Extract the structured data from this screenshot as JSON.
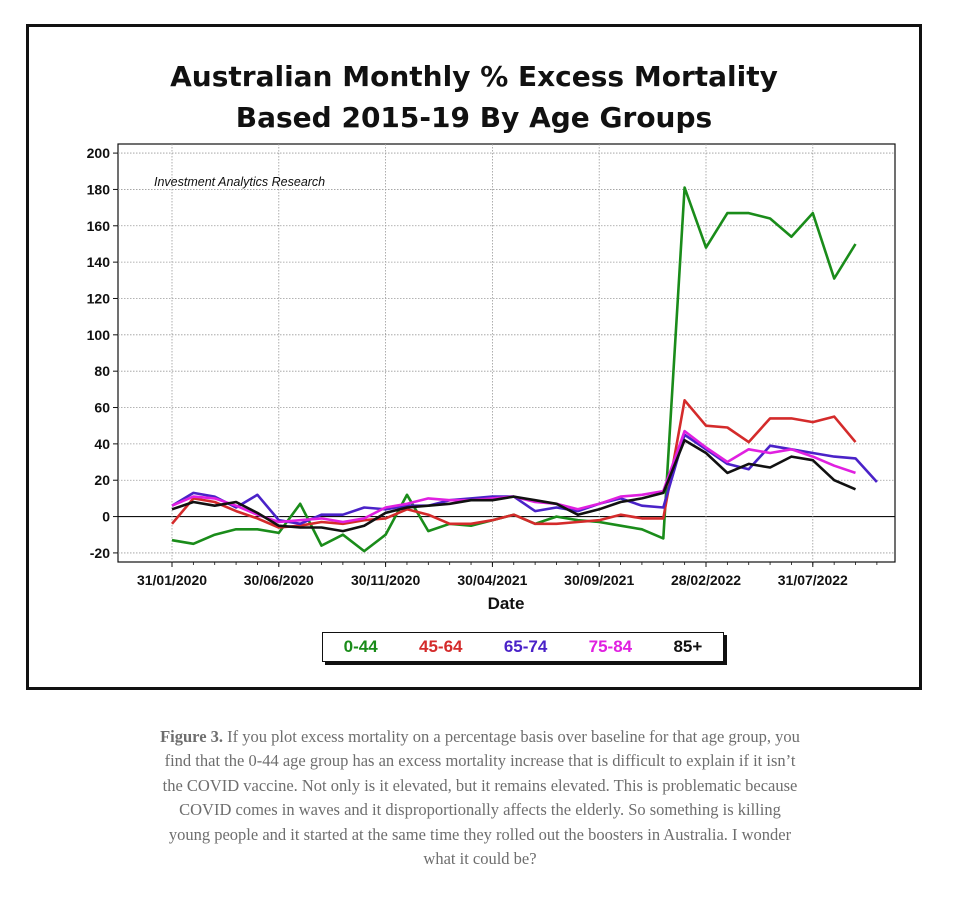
{
  "chart_data": {
    "type": "line",
    "title_lines": [
      "Australian Monthly % Excess Mortality",
      "Based 2015-19 By Age Groups"
    ],
    "watermark": "Investment Analytics Research",
    "xlabel": "Date",
    "ylabel": "",
    "ylim": [
      -25,
      205
    ],
    "yticks": [
      200,
      180,
      160,
      140,
      120,
      100,
      80,
      60,
      40,
      20,
      0,
      -20
    ],
    "xticks": [
      "31/01/2020",
      "30/06/2020",
      "30/11/2020",
      "30/04/2021",
      "30/09/2021",
      "28/02/2022",
      "31/07/2022"
    ],
    "x_dates": [
      "2020-01",
      "2020-02",
      "2020-03",
      "2020-04",
      "2020-05",
      "2020-06",
      "2020-07",
      "2020-08",
      "2020-09",
      "2020-10",
      "2020-11",
      "2020-12",
      "2021-01",
      "2021-02",
      "2021-03",
      "2021-04",
      "2021-05",
      "2021-06",
      "2021-07",
      "2021-08",
      "2021-09",
      "2021-10",
      "2021-11",
      "2021-12",
      "2022-01",
      "2022-02",
      "2022-03",
      "2022-04",
      "2022-05",
      "2022-06",
      "2022-07",
      "2022-08",
      "2022-09",
      "2022-10"
    ],
    "grid": true,
    "legend_position": "bottom",
    "series": [
      {
        "name": "0-44",
        "color": "#1a8c1a",
        "values": [
          -13,
          -15,
          -10,
          -7,
          -7,
          -9,
          7,
          -16,
          -10,
          -19,
          -10,
          12,
          -8,
          -4,
          -5,
          -2,
          1,
          -4,
          0,
          -2,
          -3,
          -5,
          -7,
          -12,
          181,
          148,
          167,
          167,
          164,
          154,
          167,
          131,
          150,
          null
        ]
      },
      {
        "name": "45-64",
        "color": "#d42b2b",
        "values": [
          -4,
          10,
          8,
          3,
          -1,
          -6,
          -5,
          -3,
          -4,
          -2,
          -1,
          4,
          1,
          -4,
          -4,
          -2,
          1,
          -4,
          -4,
          -3,
          -2,
          1,
          -1,
          -1,
          64,
          50,
          49,
          41,
          54,
          54,
          52,
          55,
          41,
          null
        ]
      },
      {
        "name": "65-74",
        "color": "#4a22c8",
        "values": [
          6,
          13,
          11,
          5,
          12,
          -2,
          -4,
          1,
          1,
          5,
          4,
          6,
          6,
          9,
          10,
          11,
          11,
          3,
          5,
          3,
          7,
          10,
          6,
          5,
          45,
          37,
          29,
          26,
          39,
          37,
          35,
          33,
          32,
          19
        ]
      },
      {
        "name": "75-84",
        "color": "#e020e0",
        "values": [
          6,
          11,
          10,
          6,
          1,
          -3,
          -2,
          -1,
          -3,
          -1,
          5,
          7,
          10,
          9,
          9,
          10,
          11,
          8,
          7,
          4,
          7,
          11,
          12,
          14,
          47,
          38,
          30,
          37,
          35,
          37,
          33,
          28,
          24,
          null
        ]
      },
      {
        "name": "85+",
        "color": "#111111",
        "values": [
          4,
          8,
          6,
          8,
          2,
          -5,
          -6,
          -6,
          -8,
          -5,
          2,
          5,
          6,
          7,
          9,
          9,
          11,
          9,
          7,
          1,
          4,
          8,
          10,
          13,
          42,
          35,
          24,
          29,
          27,
          33,
          31,
          20,
          15,
          null
        ]
      }
    ]
  },
  "caption": {
    "label": "Figure 3.",
    "text": " If you plot excess mortality on a percentage basis over baseline for that age group, you find that the 0-44 age group has an excess mortality increase that is difficult to explain if it isn’t the COVID vaccine. Not only is it elevated, but it remains elevated. This is problematic because COVID comes in waves and it disproportionally affects the elderly. So something is killing young people and it started at the same time they rolled out the boosters in Australia. I wonder what it could be?"
  }
}
